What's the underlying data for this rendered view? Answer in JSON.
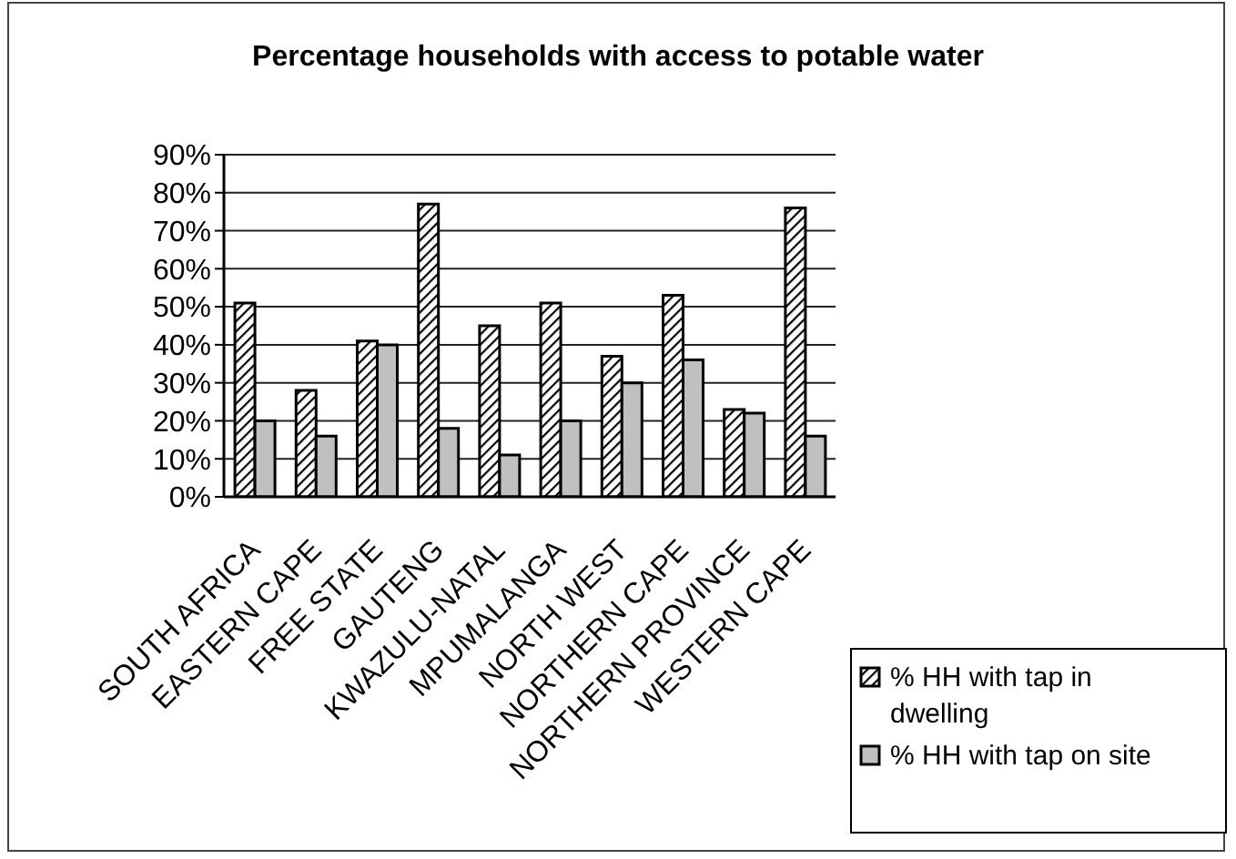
{
  "chart_data": {
    "type": "bar",
    "title": "Percentage households with access to potable water",
    "categories": [
      "SOUTH AFRICA",
      "EASTERN CAPE",
      "FREE STATE",
      "GAUTENG",
      "KWAZULU-NATAL",
      "MPUMALANGA",
      "NORTH WEST",
      "NORTHERN CAPE",
      "NORTHERN PROVINCE",
      "WESTERN CAPE"
    ],
    "series": [
      {
        "name": "% HH with tap in dwelling",
        "color": "#000000",
        "values": [
          51,
          28,
          41,
          77,
          45,
          51,
          37,
          53,
          23,
          76
        ]
      },
      {
        "name": "% HH with tap on site",
        "color": "#c0c0c0",
        "values": [
          20,
          16,
          40,
          18,
          11,
          20,
          30,
          36,
          22,
          16
        ]
      }
    ],
    "ylim": [
      0,
      90
    ],
    "yticks": [
      {
        "value": 0,
        "label": "0%"
      },
      {
        "value": 10,
        "label": "10%"
      },
      {
        "value": 20,
        "label": "20%"
      },
      {
        "value": 30,
        "label": "30%"
      },
      {
        "value": 40,
        "label": "40%"
      },
      {
        "value": 50,
        "label": "50%"
      },
      {
        "value": 60,
        "label": "60%"
      },
      {
        "value": 70,
        "label": "70%"
      },
      {
        "value": 80,
        "label": "80%"
      },
      {
        "value": 90,
        "label": "90%"
      }
    ],
    "grid": "y",
    "legend": "bottom right"
  }
}
